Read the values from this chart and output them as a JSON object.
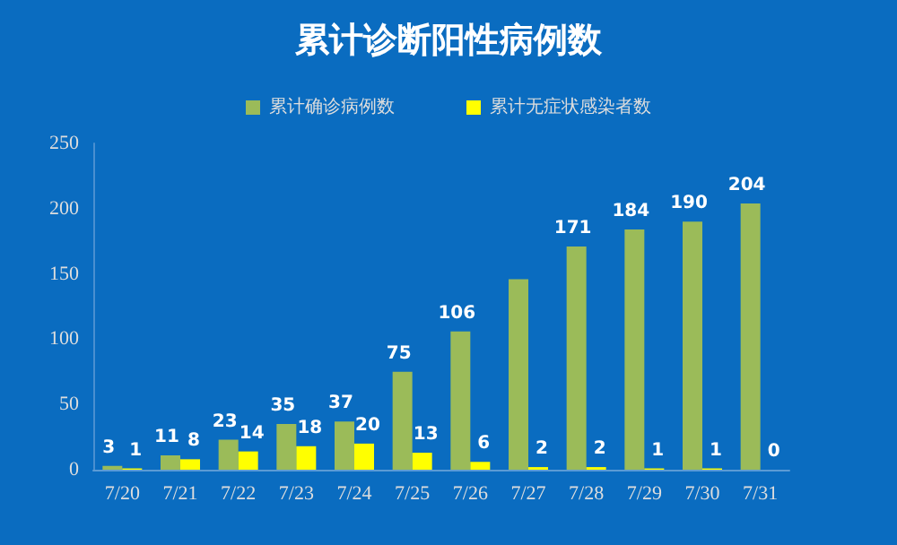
{
  "chart_data": {
    "type": "bar",
    "title": "累计诊断阳性病例数",
    "categories": [
      "7/20",
      "7/21",
      "7/22",
      "7/23",
      "7/24",
      "7/25",
      "7/26",
      "7/27",
      "7/28",
      "7/29",
      "7/30",
      "7/31"
    ],
    "series": [
      {
        "name": "累计确诊病例数",
        "color": "#9bbb59",
        "values": [
          3,
          11,
          23,
          35,
          37,
          75,
          106,
          146,
          171,
          184,
          190,
          204
        ],
        "value_labels": [
          "3",
          "11",
          "23",
          "35",
          "37",
          "75",
          "106",
          null,
          "171",
          "184",
          "190",
          "204"
        ]
      },
      {
        "name": "累计无症状感染者数",
        "color": "#ffff00",
        "values": [
          1,
          8,
          14,
          18,
          20,
          13,
          6,
          2,
          2,
          1,
          1,
          0
        ],
        "value_labels": [
          "1",
          "8",
          "14",
          "18",
          "20",
          "13",
          "6",
          "2",
          "2",
          "1",
          "1",
          "0"
        ]
      }
    ],
    "ylim": [
      0,
      250
    ],
    "yticks": [
      0,
      50,
      100,
      150,
      200,
      250
    ],
    "grid": false,
    "legend": "top"
  }
}
